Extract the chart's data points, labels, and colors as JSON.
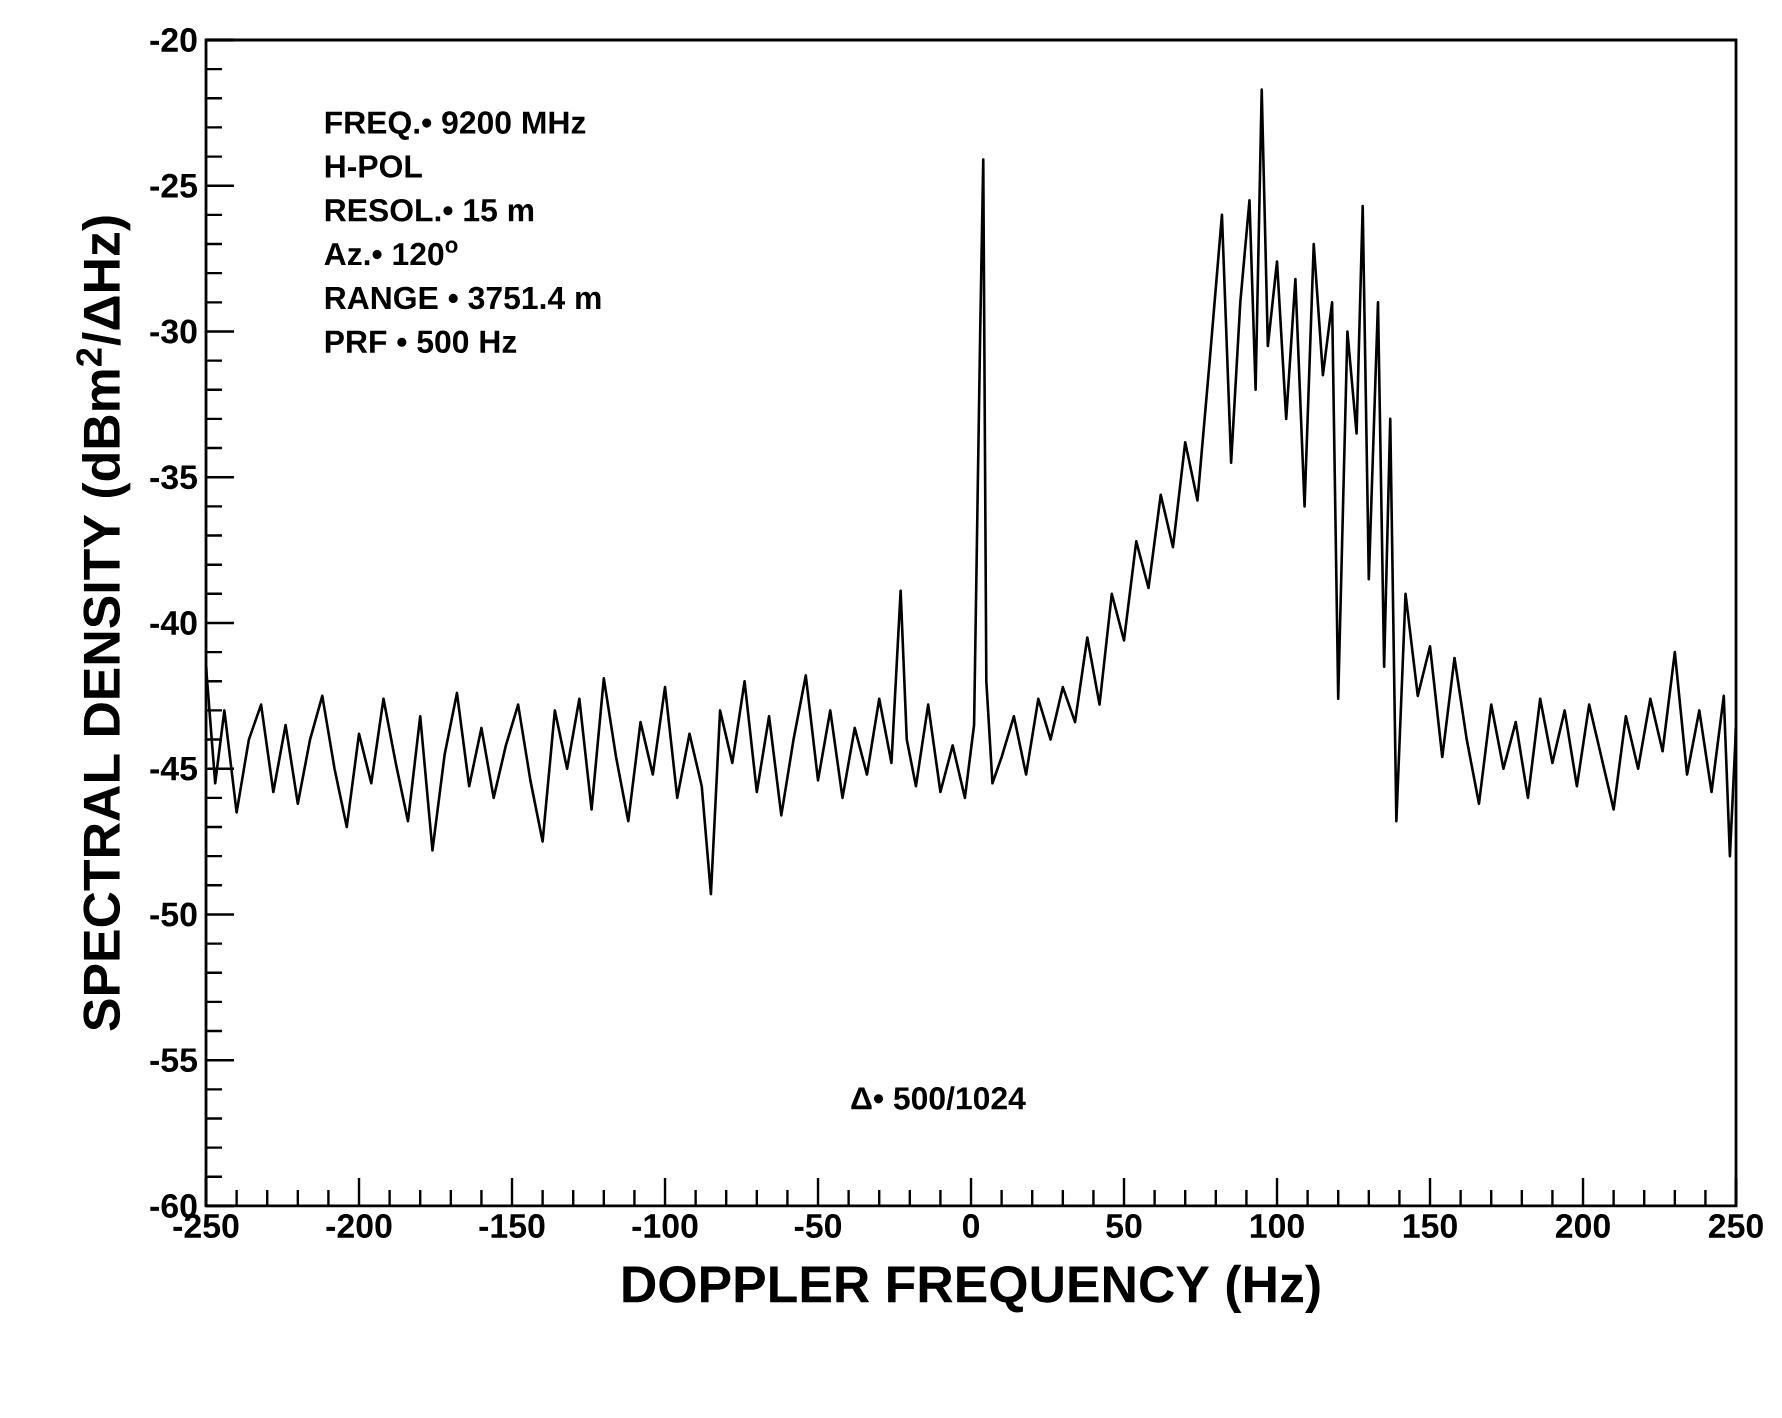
{
  "chart_data": {
    "type": "line",
    "xlabel": "DOPPLER FREQUENCY (Hz)",
    "ylabel": "SPECTRAL DENSITY (dBm$^{2}$/ΔHz)",
    "annotations": [
      "FREQ.• 9200 MHz",
      "H-POL",
      "RESOL.• 15 m",
      "Az.• 120$^{o}$",
      "RANGE • 3751.4 m",
      "PRF • 500 Hz",
      "Δ• 500/1024"
    ],
    "xlim": [
      -250,
      250
    ],
    "ylim": [
      -60,
      -20
    ],
    "xticks": [
      -250,
      -200,
      -150,
      -100,
      -50,
      0,
      50,
      100,
      150,
      200,
      250
    ],
    "yticks": [
      -60,
      -55,
      -50,
      -45,
      -40,
      -35,
      -30,
      -25,
      -20
    ],
    "grid": false,
    "marker": "none",
    "line_style": "solid",
    "series": [
      {
        "color": "#000000",
        "x": [
          -250,
          -247,
          -244,
          -240,
          -236,
          -232,
          -228,
          -224,
          -220,
          -216,
          -212,
          -208,
          -204,
          -200,
          -196,
          -192,
          -188,
          -184,
          -180,
          -176,
          -172,
          -168,
          -164,
          -160,
          -156,
          -152,
          -148,
          -144,
          -140,
          -136,
          -132,
          -128,
          -124,
          -120,
          -116,
          -112,
          -108,
          -104,
          -100,
          -96,
          -92,
          -88,
          -85,
          -82,
          -78,
          -74,
          -70,
          -66,
          -62,
          -58,
          -54,
          -50,
          -46,
          -42,
          -38,
          -34,
          -30,
          -26,
          -23,
          -21,
          -18,
          -14,
          -10,
          -6,
          -2,
          1,
          3,
          4,
          5,
          7,
          10,
          14,
          18,
          22,
          26,
          30,
          34,
          38,
          42,
          46,
          50,
          54,
          58,
          62,
          66,
          70,
          74,
          78,
          82,
          85,
          88,
          91,
          93,
          95,
          97,
          100,
          103,
          106,
          109,
          112,
          115,
          118,
          120,
          123,
          126,
          128,
          130,
          133,
          135,
          137,
          139,
          142,
          146,
          150,
          154,
          158,
          162,
          166,
          170,
          174,
          178,
          182,
          186,
          190,
          194,
          198,
          202,
          206,
          210,
          214,
          218,
          222,
          226,
          230,
          234,
          238,
          242,
          246,
          248,
          250
        ],
        "values": [
          -41.5,
          -45.5,
          -43.0,
          -46.5,
          -44.0,
          -42.8,
          -45.8,
          -43.5,
          -46.2,
          -44.0,
          -42.5,
          -45.0,
          -47.0,
          -43.8,
          -45.5,
          -42.6,
          -44.8,
          -46.8,
          -43.2,
          -47.8,
          -44.5,
          -42.4,
          -45.6,
          -43.6,
          -46.0,
          -44.2,
          -42.8,
          -45.4,
          -47.5,
          -43.0,
          -45.0,
          -42.6,
          -46.4,
          -41.9,
          -44.6,
          -46.8,
          -43.4,
          -45.2,
          -42.2,
          -46.0,
          -43.8,
          -45.6,
          -49.3,
          -43.0,
          -44.8,
          -42.0,
          -45.8,
          -43.2,
          -46.6,
          -44.0,
          -41.8,
          -45.4,
          -43.0,
          -46.0,
          -43.6,
          -45.2,
          -42.6,
          -44.8,
          -38.9,
          -44.0,
          -45.6,
          -42.8,
          -45.8,
          -44.2,
          -46.0,
          -43.5,
          -30.0,
          -24.1,
          -42.0,
          -45.5,
          -44.6,
          -43.2,
          -45.2,
          -42.6,
          -44.0,
          -42.2,
          -43.4,
          -40.5,
          -42.8,
          -39.0,
          -40.6,
          -37.2,
          -38.8,
          -35.6,
          -37.4,
          -33.8,
          -35.8,
          -31.0,
          -26.0,
          -34.5,
          -29.0,
          -25.5,
          -32.0,
          -21.7,
          -30.5,
          -27.6,
          -33.0,
          -28.2,
          -36.0,
          -27.0,
          -31.5,
          -29.0,
          -42.6,
          -30.0,
          -33.5,
          -25.7,
          -38.5,
          -29.0,
          -41.5,
          -33.0,
          -46.8,
          -39.0,
          -42.5,
          -40.8,
          -44.6,
          -41.2,
          -44.0,
          -46.2,
          -42.8,
          -45.0,
          -43.4,
          -46.0,
          -42.6,
          -44.8,
          -43.0,
          -45.6,
          -42.8,
          -44.6,
          -46.4,
          -43.2,
          -45.0,
          -42.6,
          -44.4,
          -41.0,
          -45.2,
          -43.0,
          -45.8,
          -42.5,
          -48.0,
          -43.6
        ]
      }
    ]
  }
}
